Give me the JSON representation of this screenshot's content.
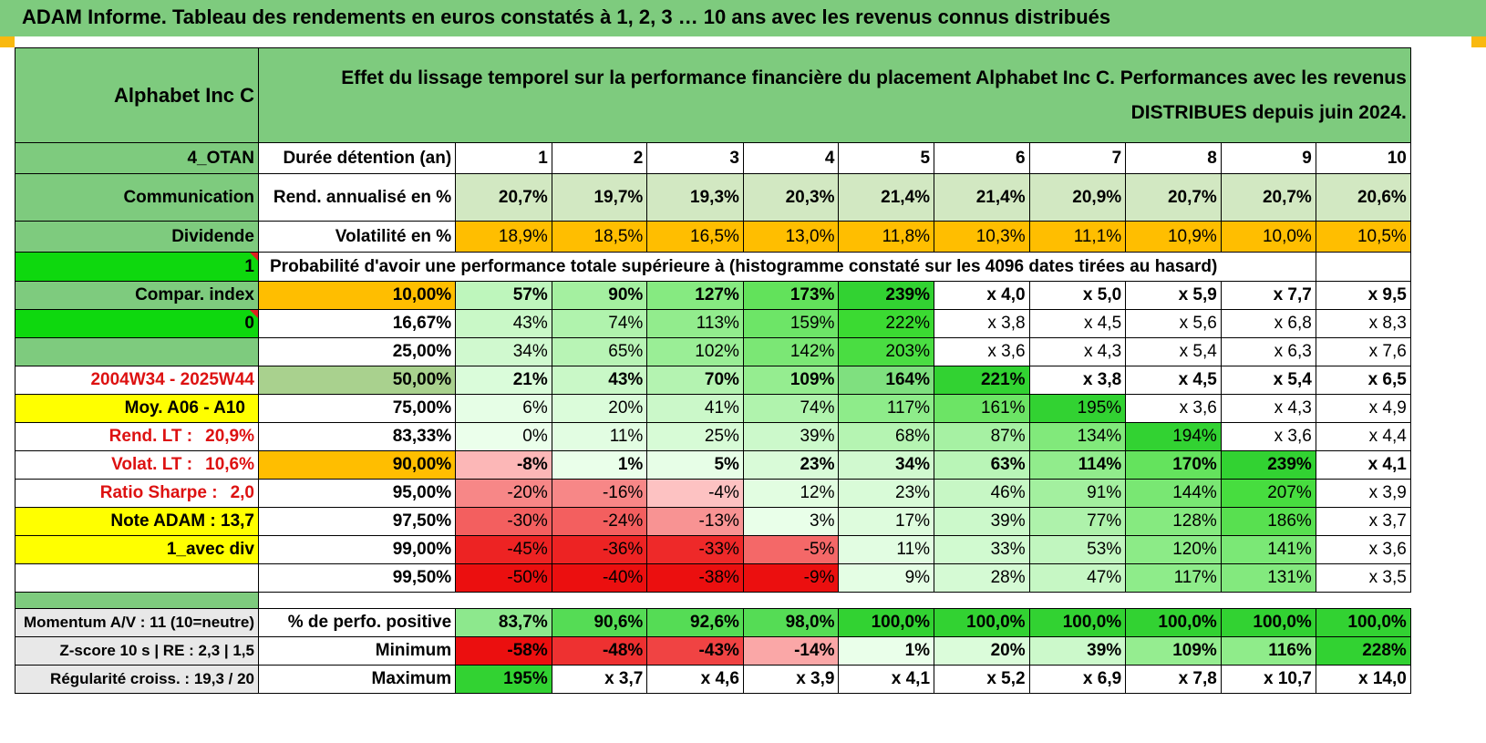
{
  "header": {
    "title": "ADAM Informe. Tableau des rendements en euros constatés à 1, 2, 3 … 10 ans avec les revenus connus distribués",
    "fund_name": "Alphabet Inc C",
    "description": "Effet du lissage temporel sur la performance financière du placement Alphabet Inc C. Performances avec les revenus DISTRIBUES depuis juin 2024."
  },
  "colors": {
    "header_green": "#7ecb7e",
    "bright_green": "#0ed80e",
    "orange": "#ffbe00",
    "yellow": "#ffff00",
    "light_green": "#d2e8c2",
    "olive_green": "#a9d18e",
    "label_red": "#d11111"
  },
  "side": {
    "code": "4_OTAN",
    "sector": "Communication",
    "type": "Dividende",
    "flag1": "1",
    "compar": "Compar. index",
    "flag2": "0",
    "period": "2004W34 - 2025W44",
    "moy": "Moy. A06 - A10",
    "rend_label": "Rend. LT :",
    "rend_value": "20,9%",
    "volat_label": "Volat. LT :",
    "volat_value": "10,6%",
    "sharpe_label": "Ratio Sharpe :",
    "sharpe_value": "2,0",
    "note": "Note ADAM : 13,7",
    "avec_div": "1_avec div"
  },
  "durations_label": "Durée détention (an)",
  "durations": [
    "1",
    "2",
    "3",
    "4",
    "5",
    "6",
    "7",
    "8",
    "9",
    "10"
  ],
  "rend": {
    "label": "Rend. annualisé en %",
    "values": [
      "20,7%",
      "19,7%",
      "19,3%",
      "20,3%",
      "21,4%",
      "21,4%",
      "20,9%",
      "20,7%",
      "20,7%",
      "20,6%"
    ]
  },
  "volat": {
    "label": "Volatilité en %",
    "values": [
      "18,9%",
      "18,5%",
      "16,5%",
      "13,0%",
      "11,8%",
      "10,3%",
      "11,1%",
      "10,9%",
      "10,0%",
      "10,5%"
    ]
  },
  "prob_title": "Probabilité d'avoir une performance totale supérieure à (histogramme constaté sur les 4096 dates tirées au hasard)",
  "prob_rows": [
    {
      "p": "10,00%",
      "values": [
        "57%",
        "90%",
        "127%",
        "173%",
        "239%",
        "x 4,0",
        "x 5,0",
        "x 5,9",
        "x 7,7",
        "x 9,5"
      ]
    },
    {
      "p": "16,67%",
      "values": [
        "43%",
        "74%",
        "113%",
        "159%",
        "222%",
        "x 3,8",
        "x 4,5",
        "x 5,6",
        "x 6,8",
        "x 8,3"
      ]
    },
    {
      "p": "25,00%",
      "values": [
        "34%",
        "65%",
        "102%",
        "142%",
        "203%",
        "x 3,6",
        "x 4,3",
        "x 5,4",
        "x 6,3",
        "x 7,6"
      ]
    },
    {
      "p": "50,00%",
      "values": [
        "21%",
        "43%",
        "70%",
        "109%",
        "164%",
        "221%",
        "x 3,8",
        "x 4,5",
        "x 5,4",
        "x 6,5"
      ]
    },
    {
      "p": "75,00%",
      "values": [
        "6%",
        "20%",
        "41%",
        "74%",
        "117%",
        "161%",
        "195%",
        "x 3,6",
        "x 4,3",
        "x 4,9"
      ]
    },
    {
      "p": "83,33%",
      "values": [
        "0%",
        "11%",
        "25%",
        "39%",
        "68%",
        "87%",
        "134%",
        "194%",
        "x 3,6",
        "x 4,4"
      ]
    },
    {
      "p": "90,00%",
      "values": [
        "-8%",
        "1%",
        "5%",
        "23%",
        "34%",
        "63%",
        "114%",
        "170%",
        "239%",
        "x 4,1"
      ]
    },
    {
      "p": "95,00%",
      "values": [
        "-20%",
        "-16%",
        "-4%",
        "12%",
        "23%",
        "46%",
        "91%",
        "144%",
        "207%",
        "x 3,9"
      ]
    },
    {
      "p": "97,50%",
      "values": [
        "-30%",
        "-24%",
        "-13%",
        "3%",
        "17%",
        "39%",
        "77%",
        "128%",
        "186%",
        "x 3,7"
      ]
    },
    {
      "p": "99,00%",
      "values": [
        "-45%",
        "-36%",
        "-33%",
        "-5%",
        "11%",
        "33%",
        "53%",
        "120%",
        "141%",
        "x 3,6"
      ]
    },
    {
      "p": "99,50%",
      "values": [
        "-50%",
        "-40%",
        "-38%",
        "-9%",
        "9%",
        "28%",
        "47%",
        "117%",
        "131%",
        "x 3,5"
      ]
    }
  ],
  "footer": {
    "momentum": "Momentum A/V : 11 (10=neutre)",
    "zscore": "Z-score 10 s | RE : 2,3 | 1,5",
    "regularite": "Régularité croiss. : 19,3 / 20",
    "pos": {
      "label": "% de perfo. positive",
      "values": [
        "83,7%",
        "90,6%",
        "92,6%",
        "98,0%",
        "100,0%",
        "100,0%",
        "100,0%",
        "100,0%",
        "100,0%",
        "100,0%"
      ]
    },
    "min": {
      "label": "Minimum",
      "values": [
        "-58%",
        "-48%",
        "-43%",
        "-14%",
        "1%",
        "20%",
        "39%",
        "109%",
        "116%",
        "228%"
      ]
    },
    "max": {
      "label": "Maximum",
      "values": [
        "195%",
        "x 3,7",
        "x 4,6",
        "x 3,9",
        "x 4,1",
        "x 5,2",
        "x 6,9",
        "x 7,8",
        "x 10,7",
        "x 14,0"
      ]
    }
  }
}
